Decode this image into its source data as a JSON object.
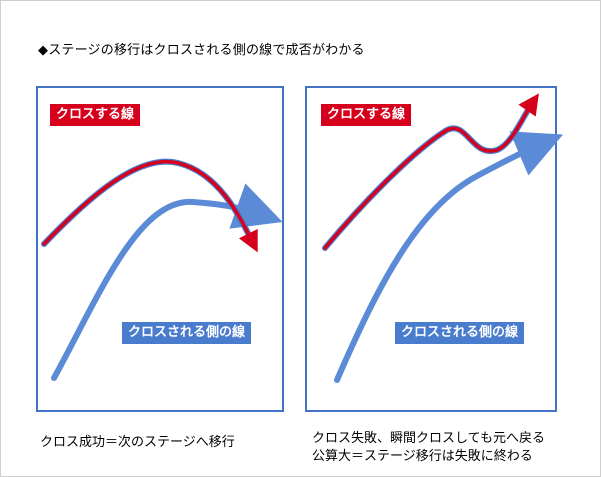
{
  "title": "◆ステージの移行はクロスされる側の線で成否がわかる",
  "panels": {
    "left": {
      "cross_label": "クロスする線",
      "crossed_label": "クロスされる側の線",
      "caption": "クロス成功＝次のステージへ移行"
    },
    "right": {
      "cross_label": "クロスする線",
      "crossed_label": "クロスされる側の線",
      "caption_line1": "クロス失敗、瞬間クロスしても元へ戻る",
      "caption_line2": "公算大＝ステージ移行は失敗に終わる"
    }
  },
  "colors": {
    "cross_line": "#d6001c",
    "cross_line_outline": "#4a7ccd",
    "crossed_line": "#5b8bd6",
    "panel_border": "#4472c4"
  }
}
